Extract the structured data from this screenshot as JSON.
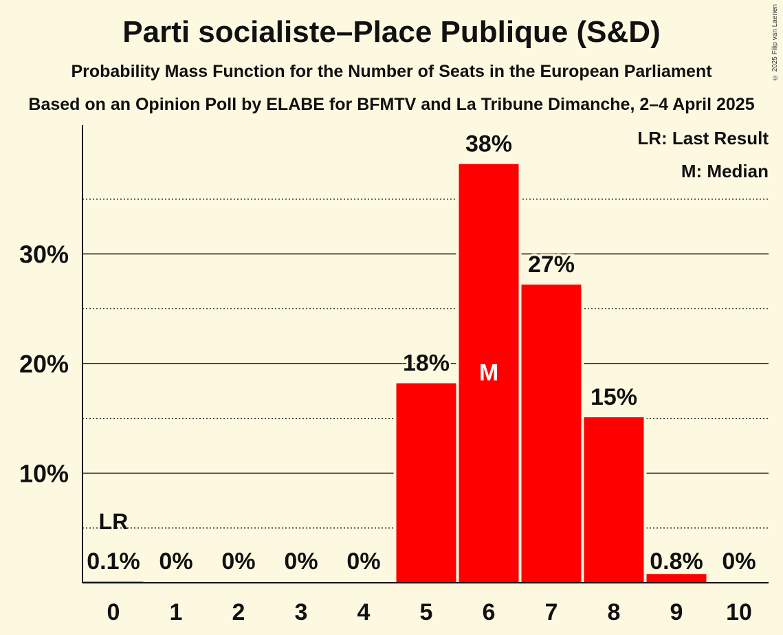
{
  "chart_data": {
    "type": "bar",
    "title": "Parti socialiste–Place Publique (S&D)",
    "subtitle": "Probability Mass Function for the Number of Seats in the European Parliament",
    "subtitle2": "Based on an Opinion Poll by ELABE for BFMTV and La Tribune Dimanche, 2–4 April 2025",
    "copyright": "© 2025 Filip van Laenen",
    "categories": [
      "0",
      "1",
      "2",
      "3",
      "4",
      "5",
      "6",
      "7",
      "8",
      "9",
      "10"
    ],
    "values": [
      0.1,
      0,
      0,
      0,
      0,
      18.2,
      38.2,
      27.2,
      15.1,
      0.8,
      0
    ],
    "value_labels": [
      "0.1%",
      "0%",
      "0%",
      "0%",
      "0%",
      "18%",
      "38%",
      "27%",
      "15%",
      "0.8%",
      "0%"
    ],
    "y_ticks": [
      10,
      20,
      30
    ],
    "y_tick_labels": [
      "10%",
      "20%",
      "30%"
    ],
    "ylim": [
      0,
      40
    ],
    "grid": true,
    "bar_color": "#ff0000",
    "last_result_index": 0,
    "last_result_label": "LR",
    "median_index": 6,
    "median_label": "M",
    "legend": [
      "LR: Last Result",
      "M: Median"
    ],
    "legend_position": "top-right"
  }
}
